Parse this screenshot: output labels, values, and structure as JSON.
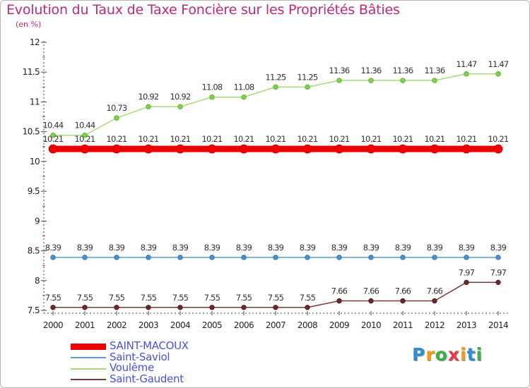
{
  "title": "Evolution du Taux de Taxe Foncière sur les Propriétés Bâties",
  "subtitle": "(en %)",
  "logo": {
    "letters": [
      "P",
      "r",
      "o",
      "x",
      "i",
      "t",
      "i"
    ],
    "colors": [
      "#2b8fd6",
      "#f39c12",
      "#3cb043",
      "#e63946",
      "#f39c12",
      "#2b8fd6",
      "#3cb043"
    ]
  },
  "chart_data": {
    "type": "line",
    "title": "Evolution du Taux de Taxe Foncière sur les Propriétés Bâties",
    "ylabel": "(en %)",
    "xlabel": "",
    "x": [
      "2000",
      "2001",
      "2002",
      "2003",
      "2004",
      "2005",
      "2006",
      "2007",
      "2008",
      "2009",
      "2010",
      "2011",
      "2012",
      "2013",
      "2014"
    ],
    "ylim": [
      7.5,
      12
    ],
    "yticks": [
      "7.5",
      "8",
      "8.5",
      "9",
      "9.5",
      "10",
      "10.5",
      "11",
      "11.5",
      "12"
    ],
    "grid": false,
    "series": [
      {
        "name": "SAINT-MACOUX",
        "color": "#ee0000",
        "values": [
          10.21,
          10.21,
          10.21,
          10.21,
          10.21,
          10.21,
          10.21,
          10.21,
          10.21,
          10.21,
          10.21,
          10.21,
          10.21,
          10.21,
          10.21
        ],
        "labels": [
          "10.21",
          "10.21",
          "10.21",
          "10.21",
          "10.21",
          "10.21",
          "10.21",
          "10.21",
          "10.21",
          "10.21",
          "10.21",
          "10.21",
          "10.21",
          "10.21",
          "10.21"
        ]
      },
      {
        "name": "Saint-Saviol",
        "color": "#5e9cd3",
        "values": [
          8.39,
          8.39,
          8.39,
          8.39,
          8.39,
          8.39,
          8.39,
          8.39,
          8.39,
          8.39,
          8.39,
          8.39,
          8.39,
          8.39,
          8.39
        ],
        "labels": [
          "8.39",
          "8.39",
          "8.39",
          "8.39",
          "8.39",
          "8.39",
          "8.39",
          "8.39",
          "8.39",
          "8.39",
          "8.39",
          "8.39",
          "8.39",
          "8.39",
          "8.39"
        ]
      },
      {
        "name": "Voulême",
        "color": "#a6db7b",
        "values": [
          10.44,
          10.44,
          10.73,
          10.92,
          10.92,
          11.08,
          11.08,
          11.25,
          11.25,
          11.36,
          11.36,
          11.36,
          11.36,
          11.47,
          11.47
        ],
        "labels": [
          "10.44",
          "10.44",
          "10.73",
          "10.92",
          "10.92",
          "11.08",
          "11.08",
          "11.25",
          "11.25",
          "11.36",
          "11.36",
          "11.36",
          "11.36",
          "11.47",
          "11.47"
        ]
      },
      {
        "name": "Saint-Gaudent",
        "color": "#7a3b3b",
        "values": [
          7.55,
          7.55,
          7.55,
          7.55,
          7.55,
          7.55,
          7.55,
          7.55,
          7.55,
          7.66,
          7.66,
          7.66,
          7.66,
          7.97,
          7.97
        ],
        "labels": [
          "7.55",
          "7.55",
          "7.55",
          "7.55",
          "7.55",
          "7.55",
          "7.55",
          "7.55",
          "7.55",
          "7.66",
          "7.66",
          "7.66",
          "7.66",
          "7.97",
          "7.97"
        ]
      }
    ],
    "legend_position": "bottom-left"
  }
}
